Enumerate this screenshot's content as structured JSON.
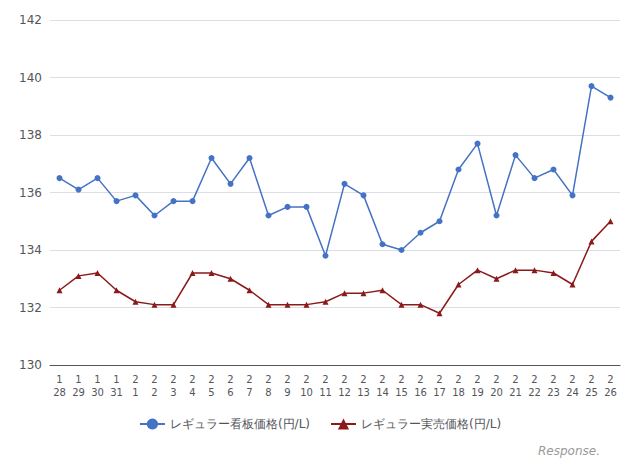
{
  "chart_data": {
    "type": "line",
    "categories": [
      "1\n28",
      "1\n29",
      "1\n30",
      "1\n31",
      "2\n1",
      "2\n2",
      "2\n3",
      "2\n4",
      "2\n5",
      "2\n6",
      "2\n7",
      "2\n8",
      "2\n9",
      "2\n10",
      "2\n11",
      "2\n12",
      "2\n13",
      "2\n14",
      "2\n15",
      "2\n16",
      "2\n17",
      "2\n18",
      "2\n19",
      "2\n20",
      "2\n21",
      "2\n22",
      "2\n23",
      "2\n24",
      "2\n25",
      "2\n26"
    ],
    "series": [
      {
        "name": "レギュラー看板価格(円/L)",
        "color": "#4472c4",
        "marker": "circle",
        "values": [
          136.5,
          136.1,
          136.5,
          135.7,
          135.9,
          135.2,
          135.7,
          135.7,
          137.2,
          136.3,
          137.2,
          135.2,
          135.5,
          135.5,
          133.8,
          136.3,
          135.9,
          134.2,
          134.0,
          134.6,
          135.0,
          136.8,
          137.7,
          135.2,
          137.3,
          136.5,
          136.8,
          135.9,
          139.7,
          139.3
        ]
      },
      {
        "name": "レギュラー実売価格(円/L)",
        "color": "#8b1a1a",
        "marker": "triangle",
        "values": [
          132.6,
          133.1,
          133.2,
          132.6,
          132.2,
          132.1,
          132.1,
          133.2,
          133.2,
          133.0,
          132.6,
          132.1,
          132.1,
          132.1,
          132.2,
          132.5,
          132.5,
          132.6,
          132.1,
          132.1,
          131.8,
          132.8,
          133.3,
          133.0,
          133.3,
          133.3,
          133.2,
          132.8,
          134.3,
          135.0
        ]
      }
    ],
    "ylim": [
      130,
      142
    ],
    "yticks": [
      130,
      132,
      134,
      136,
      138,
      140,
      142
    ],
    "grid": true,
    "legend": "bottom",
    "annotations": [
      "Response."
    ]
  }
}
